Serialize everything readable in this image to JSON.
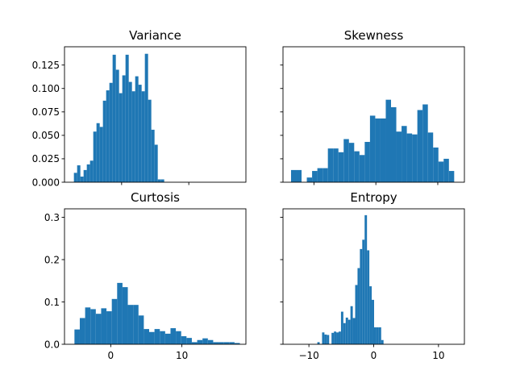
{
  "chart_data": [
    {
      "type": "bar",
      "title": "Variance",
      "xlabel": "",
      "ylabel": "",
      "xlim": [
        -8.5,
        18.5
      ],
      "ylim": [
        0,
        0.1445
      ],
      "xticks": [],
      "yticks": [
        0,
        0.025,
        0.05,
        0.075,
        0.1,
        0.125
      ],
      "ytick_labels": [
        "0.000",
        "0.025",
        "0.050",
        "0.075",
        "0.100",
        "0.125"
      ],
      "color": "#1f77b4",
      "bin_start": -7.1,
      "bin_width": 0.48,
      "values": [
        0.01,
        0.018,
        0.006,
        0.013,
        0.019,
        0.023,
        0.054,
        0.063,
        0.059,
        0.087,
        0.098,
        0.106,
        0.136,
        0.12,
        0.095,
        0.114,
        0.136,
        0.107,
        0.097,
        0.113,
        0.104,
        0.097,
        0.137,
        0.088,
        0.056,
        0.04,
        0.003,
        0.003
      ]
    },
    {
      "type": "bar",
      "title": "Skewness",
      "xlabel": "",
      "ylabel": "",
      "xlim": [
        -15.0,
        14.3
      ],
      "ylim": [
        0,
        0.1445
      ],
      "xticks": [],
      "yticks": [
        0,
        0.025,
        0.05,
        0.075,
        0.1,
        0.125
      ],
      "ytick_labels": [
        "",
        "",
        "",
        "",
        "",
        ""
      ],
      "color": "#1f77b4",
      "bin_start": -13.7,
      "bin_width": 0.85,
      "values": [
        0.013,
        0.013,
        0.0,
        0.005,
        0.012,
        0.015,
        0.015,
        0.036,
        0.036,
        0.032,
        0.046,
        0.042,
        0.033,
        0.029,
        0.043,
        0.071,
        0.068,
        0.068,
        0.088,
        0.08,
        0.054,
        0.06,
        0.052,
        0.051,
        0.077,
        0.083,
        0.053,
        0.037,
        0.022,
        0.025,
        0.012
      ]
    },
    {
      "type": "bar",
      "title": "Curtosis",
      "xlabel": "",
      "ylabel": "",
      "xlim": [
        -6.5,
        19.0
      ],
      "ylim": [
        0,
        0.32
      ],
      "xticks": [
        0,
        10
      ],
      "xtick_labels": [
        "0",
        "10"
      ],
      "yticks": [
        0,
        0.1,
        0.2,
        0.3
      ],
      "ytick_labels": [
        "0.0",
        "0.1",
        "0.2",
        "0.3"
      ],
      "color": "#1f77b4",
      "bin_start": -5.1,
      "bin_width": 0.75,
      "values": [
        0.035,
        0.062,
        0.087,
        0.083,
        0.072,
        0.085,
        0.078,
        0.107,
        0.145,
        0.135,
        0.093,
        0.093,
        0.068,
        0.036,
        0.029,
        0.036,
        0.031,
        0.025,
        0.038,
        0.031,
        0.019,
        0.015,
        0.005,
        0.01,
        0.014,
        0.01,
        0.005,
        0.005,
        0.005,
        0.005,
        0.003
      ]
    },
    {
      "type": "bar",
      "title": "Entropy",
      "xlabel": "",
      "ylabel": "",
      "xlim": [
        -14.0,
        14.0
      ],
      "ylim": [
        0,
        0.32
      ],
      "xticks": [
        -10,
        0,
        10
      ],
      "xtick_labels": [
        "−10",
        "0",
        "10"
      ],
      "yticks": [
        0,
        0.1,
        0.2,
        0.3
      ],
      "ytick_labels": [
        "",
        "",
        "",
        ""
      ],
      "color": "#1f77b4",
      "bin_start": -8.7,
      "bin_width": 0.365,
      "values": [
        0.005,
        0.0,
        0.028,
        0.023,
        0.022,
        0.0,
        0.027,
        0.03,
        0.028,
        0.03,
        0.077,
        0.05,
        0.063,
        0.058,
        0.09,
        0.062,
        0.14,
        0.18,
        0.225,
        0.247,
        0.305,
        0.222,
        0.137,
        0.105,
        0.04,
        0.04,
        0.04,
        0.01
      ]
    }
  ]
}
